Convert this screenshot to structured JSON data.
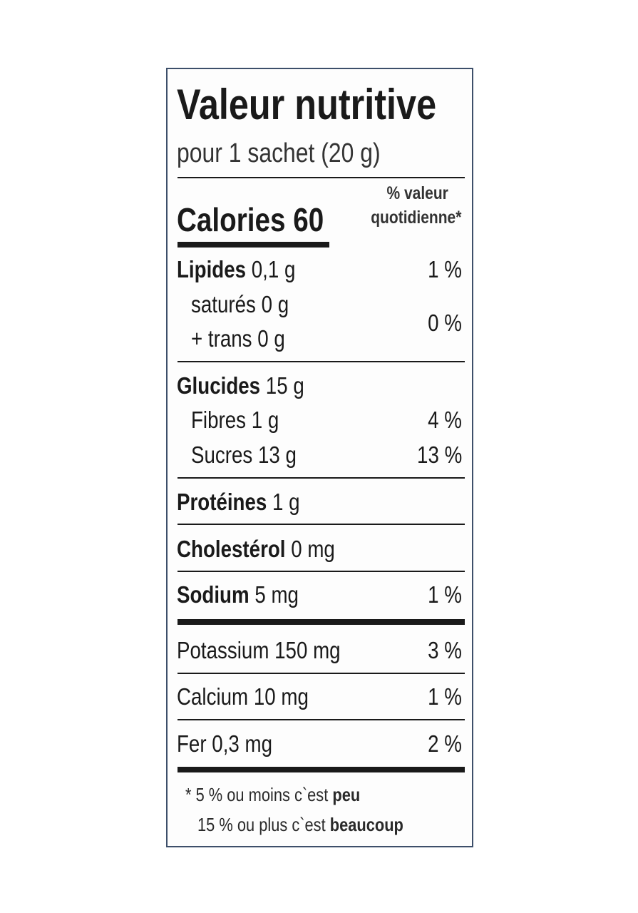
{
  "title": "Valeur nutritive",
  "serving": "pour 1 sachet (20 g)",
  "dv_header": {
    "line1": "% valeur",
    "line2": "quotidienne*"
  },
  "calories": {
    "label": "Calories",
    "value": "60"
  },
  "rows": {
    "lipides": {
      "label": "Lipides",
      "amount": "0,1 g",
      "dv": "1 %"
    },
    "satures": {
      "label": "saturés",
      "amount": "0 g"
    },
    "trans": {
      "label": "+ trans",
      "amount": "0 g",
      "dv": "0 %"
    },
    "glucides": {
      "label": "Glucides",
      "amount": "15 g"
    },
    "fibres": {
      "label": "Fibres",
      "amount": "1 g",
      "dv": "4 %"
    },
    "sucres": {
      "label": "Sucres",
      "amount": "13 g",
      "dv": "13 %"
    },
    "proteines": {
      "label": "Protéines",
      "amount": "1 g"
    },
    "cholesterol": {
      "label": "Cholestérol",
      "amount": "0 mg"
    },
    "sodium": {
      "label": "Sodium",
      "amount": "5 mg",
      "dv": "1 %"
    },
    "potassium": {
      "label": "Potassium",
      "amount": "150 mg",
      "dv": "3 %"
    },
    "calcium": {
      "label": "Calcium",
      "amount": "10 mg",
      "dv": "1 %"
    },
    "fer": {
      "label": "Fer",
      "amount": "0,3 mg",
      "dv": "2 %"
    }
  },
  "footnote": {
    "line1_prefix": "* 5 % ou moins c`est ",
    "line1_bold": "peu",
    "line2_prefix": "15 % ou plus c`est ",
    "line2_bold": "beaucoup"
  }
}
